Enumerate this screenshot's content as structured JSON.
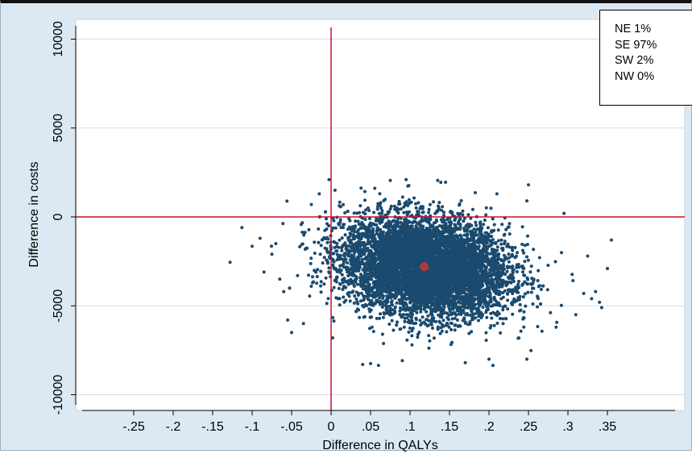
{
  "chart_data": {
    "type": "scatter",
    "title": "",
    "xlabel": "Difference in QALYs",
    "ylabel": "Difference in costs",
    "xlim": [
      -0.27,
      0.36
    ],
    "ylim": [
      -10500,
      10500
    ],
    "x_ticks": [
      -0.25,
      -0.2,
      -0.15,
      -0.1,
      -0.05,
      0,
      0.05,
      0.1,
      0.15,
      0.2,
      0.25,
      0.3,
      0.35
    ],
    "x_tick_labels": [
      "-.25",
      "-.2",
      "-.15",
      "-.1",
      "-.05",
      "0",
      ".05",
      ".1",
      ".15",
      ".2",
      ".25",
      ".3",
      ".35"
    ],
    "y_ticks": [
      -10000,
      -5000,
      0,
      5000,
      10000
    ],
    "y_tick_labels": [
      "-10000",
      "-5000",
      "0",
      "5000",
      "10000"
    ],
    "grid": "horizontal",
    "reference_lines": {
      "x": 0,
      "y": 0,
      "color": "#c8102e"
    },
    "point_color": "#1a4a6e",
    "mean_point": {
      "x": 0.118,
      "y": -2800,
      "color": "#b03a3a"
    },
    "cloud": {
      "center_x": 0.12,
      "center_y": -2800,
      "x_min": -0.13,
      "x_max": 0.35,
      "y_min": -8400,
      "y_max": 2100
    },
    "outliers": [
      {
        "x": -0.128,
        "y": -2550
      },
      {
        "x": -0.113,
        "y": -600
      },
      {
        "x": -0.1,
        "y": -1650
      },
      {
        "x": -0.09,
        "y": -1200
      },
      {
        "x": -0.085,
        "y": -3100
      },
      {
        "x": -0.075,
        "y": -2100
      },
      {
        "x": -0.07,
        "y": -1500
      },
      {
        "x": -0.06,
        "y": -4200
      },
      {
        "x": -0.055,
        "y": -5800
      },
      {
        "x": -0.05,
        "y": -6500
      },
      {
        "x": -0.065,
        "y": -3500
      },
      {
        "x": -0.035,
        "y": -6000
      },
      {
        "x": -0.025,
        "y": 700
      },
      {
        "x": -0.015,
        "y": 1300
      },
      {
        "x": 0.002,
        "y": -6800
      },
      {
        "x": 0.005,
        "y": 1500
      },
      {
        "x": 0.04,
        "y": -8300
      },
      {
        "x": 0.05,
        "y": -8250
      },
      {
        "x": 0.06,
        "y": -8350
      },
      {
        "x": 0.075,
        "y": 2050
      },
      {
        "x": 0.095,
        "y": 2100
      },
      {
        "x": 0.135,
        "y": 2050
      },
      {
        "x": 0.145,
        "y": 1950
      },
      {
        "x": 0.17,
        "y": -8200
      },
      {
        "x": 0.2,
        "y": -8000
      },
      {
        "x": 0.205,
        "y": -8350
      },
      {
        "x": 0.21,
        "y": 1300
      },
      {
        "x": 0.25,
        "y": 1800
      },
      {
        "x": 0.248,
        "y": 900
      },
      {
        "x": 0.248,
        "y": -8000
      },
      {
        "x": 0.285,
        "y": -6200
      },
      {
        "x": 0.295,
        "y": 200
      },
      {
        "x": 0.31,
        "y": -5500
      },
      {
        "x": 0.32,
        "y": -4300
      },
      {
        "x": 0.33,
        "y": -4600
      },
      {
        "x": 0.335,
        "y": -4200
      },
      {
        "x": 0.34,
        "y": -4800
      },
      {
        "x": 0.35,
        "y": -2900
      },
      {
        "x": 0.355,
        "y": -1300
      },
      {
        "x": 0.325,
        "y": -2200
      }
    ],
    "quadrant_legend": [
      "NE 1%",
      "SE 97%",
      "SW 2%",
      "NW 0%"
    ]
  }
}
